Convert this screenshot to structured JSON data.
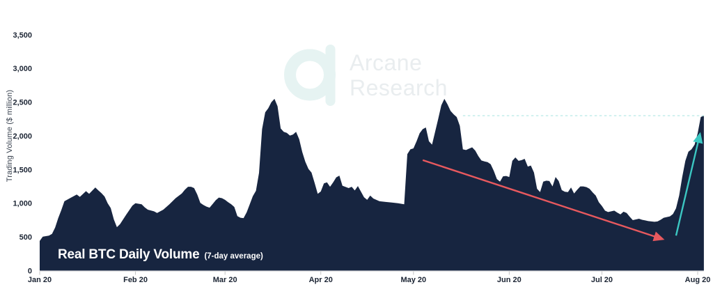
{
  "watermark": {
    "line1": "Arcane",
    "line2": "Research"
  },
  "title": {
    "main": "Real BTC Daily Volume",
    "sub": "(7-day average)"
  },
  "y_axis": {
    "label": "Trading Volume ($ million)",
    "ticks": [
      "0",
      "500",
      "1,000",
      "1,500",
      "2,000",
      "2,500",
      "3,000",
      "3,500"
    ]
  },
  "x_axis": {
    "ticks": [
      "Jan 20",
      "Feb 20",
      "Mar 20",
      "Apr 20",
      "May 20",
      "Jun 20",
      "Jul 20",
      "Aug 20"
    ]
  },
  "chart_data": {
    "type": "area",
    "title": "Real BTC Daily Volume (7-day average)",
    "ylabel": "Trading Volume ($ million)",
    "x_unit": "days since Jan 20 2020",
    "xlim": [
      0,
      215
    ],
    "ylim": [
      0,
      3500
    ],
    "grid": false,
    "legend": "none",
    "y_tick_values": [
      0,
      500,
      1000,
      1500,
      2000,
      2500,
      3000,
      3500
    ],
    "y_tick_labels": [
      "0",
      "500",
      "1,000",
      "1,500",
      "2,000",
      "2,500",
      "3,000",
      "3,500"
    ],
    "x_tick_days": [
      0,
      31,
      60,
      91,
      121,
      152,
      182,
      213
    ],
    "x_tick_labels": [
      "Jan 20",
      "Feb 20",
      "Mar 20",
      "Apr 20",
      "May 20",
      "Jun 20",
      "Jul 20",
      "Aug 20"
    ],
    "series": [
      {
        "name": "Real BTC daily volume, 7-day average ($ million)",
        "points": [
          [
            0,
            440
          ],
          [
            1,
            505
          ],
          [
            3,
            520
          ],
          [
            4,
            545
          ],
          [
            5,
            640
          ],
          [
            6,
            780
          ],
          [
            7,
            900
          ],
          [
            8,
            1030
          ],
          [
            10,
            1080
          ],
          [
            12,
            1130
          ],
          [
            13,
            1095
          ],
          [
            15,
            1180
          ],
          [
            16,
            1140
          ],
          [
            18,
            1235
          ],
          [
            19,
            1190
          ],
          [
            20,
            1150
          ],
          [
            21,
            1100
          ],
          [
            22,
            1000
          ],
          [
            23,
            930
          ],
          [
            24,
            760
          ],
          [
            25,
            645
          ],
          [
            26,
            690
          ],
          [
            28,
            830
          ],
          [
            30,
            965
          ],
          [
            31,
            1000
          ],
          [
            33,
            985
          ],
          [
            34,
            940
          ],
          [
            35,
            905
          ],
          [
            37,
            880
          ],
          [
            38,
            855
          ],
          [
            40,
            905
          ],
          [
            42,
            985
          ],
          [
            44,
            1075
          ],
          [
            46,
            1145
          ],
          [
            47,
            1200
          ],
          [
            48,
            1245
          ],
          [
            49,
            1245
          ],
          [
            50,
            1225
          ],
          [
            51,
            1130
          ],
          [
            52,
            1005
          ],
          [
            53,
            975
          ],
          [
            54,
            950
          ],
          [
            55,
            935
          ],
          [
            56,
            990
          ],
          [
            57,
            1045
          ],
          [
            58,
            1085
          ],
          [
            59,
            1075
          ],
          [
            60,
            1050
          ],
          [
            61,
            1015
          ],
          [
            62,
            985
          ],
          [
            63,
            945
          ],
          [
            64,
            810
          ],
          [
            65,
            785
          ],
          [
            66,
            780
          ],
          [
            67,
            865
          ],
          [
            68,
            985
          ],
          [
            69,
            1105
          ],
          [
            70,
            1185
          ],
          [
            71,
            1450
          ],
          [
            72,
            2100
          ],
          [
            73,
            2350
          ],
          [
            74,
            2410
          ],
          [
            75,
            2500
          ],
          [
            76,
            2550
          ],
          [
            77,
            2440
          ],
          [
            78,
            2110
          ],
          [
            79,
            2060
          ],
          [
            80,
            2045
          ],
          [
            81,
            2005
          ],
          [
            82,
            2020
          ],
          [
            83,
            2060
          ],
          [
            84,
            1950
          ],
          [
            85,
            1760
          ],
          [
            86,
            1615
          ],
          [
            87,
            1510
          ],
          [
            88,
            1455
          ],
          [
            89,
            1300
          ],
          [
            90,
            1140
          ],
          [
            91,
            1175
          ],
          [
            92,
            1295
          ],
          [
            93,
            1310
          ],
          [
            94,
            1245
          ],
          [
            95,
            1310
          ],
          [
            96,
            1385
          ],
          [
            97,
            1410
          ],
          [
            98,
            1260
          ],
          [
            100,
            1225
          ],
          [
            101,
            1245
          ],
          [
            102,
            1190
          ],
          [
            103,
            1255
          ],
          [
            105,
            1090
          ],
          [
            106,
            1050
          ],
          [
            107,
            1115
          ],
          [
            108,
            1070
          ],
          [
            110,
            1030
          ],
          [
            112,
            1020
          ],
          [
            114,
            1010
          ],
          [
            116,
            1000
          ],
          [
            118,
            985
          ],
          [
            119,
            1730
          ],
          [
            120,
            1800
          ],
          [
            121,
            1815
          ],
          [
            122,
            1920
          ],
          [
            123,
            2040
          ],
          [
            124,
            2100
          ],
          [
            125,
            2125
          ],
          [
            126,
            1920
          ],
          [
            127,
            1870
          ],
          [
            128,
            2060
          ],
          [
            129,
            2250
          ],
          [
            130,
            2455
          ],
          [
            131,
            2550
          ],
          [
            132,
            2470
          ],
          [
            133,
            2370
          ],
          [
            134,
            2320
          ],
          [
            135,
            2280
          ],
          [
            136,
            2150
          ],
          [
            137,
            1800
          ],
          [
            138,
            1790
          ],
          [
            139,
            1810
          ],
          [
            140,
            1830
          ],
          [
            141,
            1780
          ],
          [
            142,
            1700
          ],
          [
            143,
            1635
          ],
          [
            144,
            1620
          ],
          [
            145,
            1610
          ],
          [
            146,
            1580
          ],
          [
            147,
            1480
          ],
          [
            148,
            1360
          ],
          [
            149,
            1320
          ],
          [
            150,
            1400
          ],
          [
            151,
            1405
          ],
          [
            152,
            1390
          ],
          [
            153,
            1630
          ],
          [
            154,
            1680
          ],
          [
            155,
            1630
          ],
          [
            156,
            1640
          ],
          [
            157,
            1660
          ],
          [
            158,
            1545
          ],
          [
            159,
            1560
          ],
          [
            160,
            1455
          ],
          [
            161,
            1215
          ],
          [
            162,
            1165
          ],
          [
            163,
            1320
          ],
          [
            164,
            1335
          ],
          [
            165,
            1330
          ],
          [
            166,
            1250
          ],
          [
            167,
            1390
          ],
          [
            168,
            1330
          ],
          [
            169,
            1195
          ],
          [
            170,
            1170
          ],
          [
            171,
            1165
          ],
          [
            172,
            1235
          ],
          [
            173,
            1145
          ],
          [
            174,
            1200
          ],
          [
            175,
            1250
          ],
          [
            176,
            1250
          ],
          [
            177,
            1240
          ],
          [
            178,
            1215
          ],
          [
            179,
            1160
          ],
          [
            180,
            1115
          ],
          [
            181,
            1015
          ],
          [
            182,
            960
          ],
          [
            183,
            890
          ],
          [
            184,
            870
          ],
          [
            185,
            880
          ],
          [
            186,
            890
          ],
          [
            187,
            860
          ],
          [
            188,
            835
          ],
          [
            189,
            875
          ],
          [
            190,
            855
          ],
          [
            191,
            800
          ],
          [
            192,
            750
          ],
          [
            193,
            760
          ],
          [
            194,
            770
          ],
          [
            195,
            755
          ],
          [
            196,
            745
          ],
          [
            197,
            735
          ],
          [
            198,
            730
          ],
          [
            199,
            725
          ],
          [
            200,
            730
          ],
          [
            201,
            755
          ],
          [
            202,
            785
          ],
          [
            203,
            795
          ],
          [
            204,
            805
          ],
          [
            205,
            840
          ],
          [
            206,
            925
          ],
          [
            207,
            1115
          ],
          [
            208,
            1390
          ],
          [
            209,
            1630
          ],
          [
            210,
            1765
          ],
          [
            211,
            1800
          ],
          [
            212,
            1870
          ],
          [
            213,
            2040
          ],
          [
            214,
            2280
          ],
          [
            215,
            2300
          ]
        ]
      }
    ],
    "annotations": {
      "dashed_level_line": {
        "value": 2300,
        "from_day": 137,
        "to_day": 215,
        "color": "#bdebe8"
      },
      "downtrend_arrow": {
        "from": [
          124,
          1640
        ],
        "to": [
          201.5,
          470
        ],
        "color": "#e8595e"
      },
      "uptrend_arrow": {
        "from": [
          206,
          520
        ],
        "to": [
          213.7,
          2020
        ],
        "color": "#3cc7c2"
      }
    },
    "colors": {
      "area_fill": "#172540",
      "tick_label": "#1b2433",
      "axis_line": "#dcdcdc",
      "watermark_logo": "#e6f3f2",
      "watermark_text": "#e9edef"
    }
  }
}
